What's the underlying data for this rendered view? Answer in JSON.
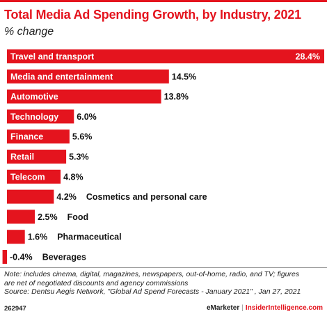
{
  "header": {
    "title": "Total Media Ad Spending Growth, by Industry, 2021",
    "subtitle": "% change"
  },
  "chart_data": {
    "type": "bar",
    "orientation": "horizontal",
    "title": "Total Media Ad Spending Growth, by Industry, 2021",
    "subtitle": "% change",
    "categories": [
      "Travel and transport",
      "Media and entertainment",
      "Automotive",
      "Technology",
      "Finance",
      "Retail",
      "Telecom",
      "Cosmetics and personal care",
      "Food",
      "Pharmaceutical",
      "Beverages"
    ],
    "values": [
      28.4,
      14.5,
      13.8,
      6.0,
      5.6,
      5.3,
      4.8,
      4.2,
      2.5,
      1.6,
      -0.4
    ],
    "value_labels": [
      "28.4%",
      "14.5%",
      "13.8%",
      "6.0%",
      "5.6%",
      "5.3%",
      "4.8%",
      "4.2%",
      "2.5%",
      "1.6%",
      "-0.4%"
    ],
    "bar_color": "#e4141e",
    "grid": false,
    "legend": "none"
  },
  "footer": {
    "note_lines": [
      "Note: includes cinema, digital, magazines, newspapers, out-of-home, radio, and TV; figures",
      "are net of negotiated discounts and agency commissions",
      "Source: Dentsu Aegis Network, \"Global Ad Spend Forecasts - January 2021\" , Jan 27, 2021"
    ],
    "chart_id": "262947",
    "brand1": "eMarketer",
    "separator": "|",
    "brand2": "InsiderIntelligence.com"
  }
}
